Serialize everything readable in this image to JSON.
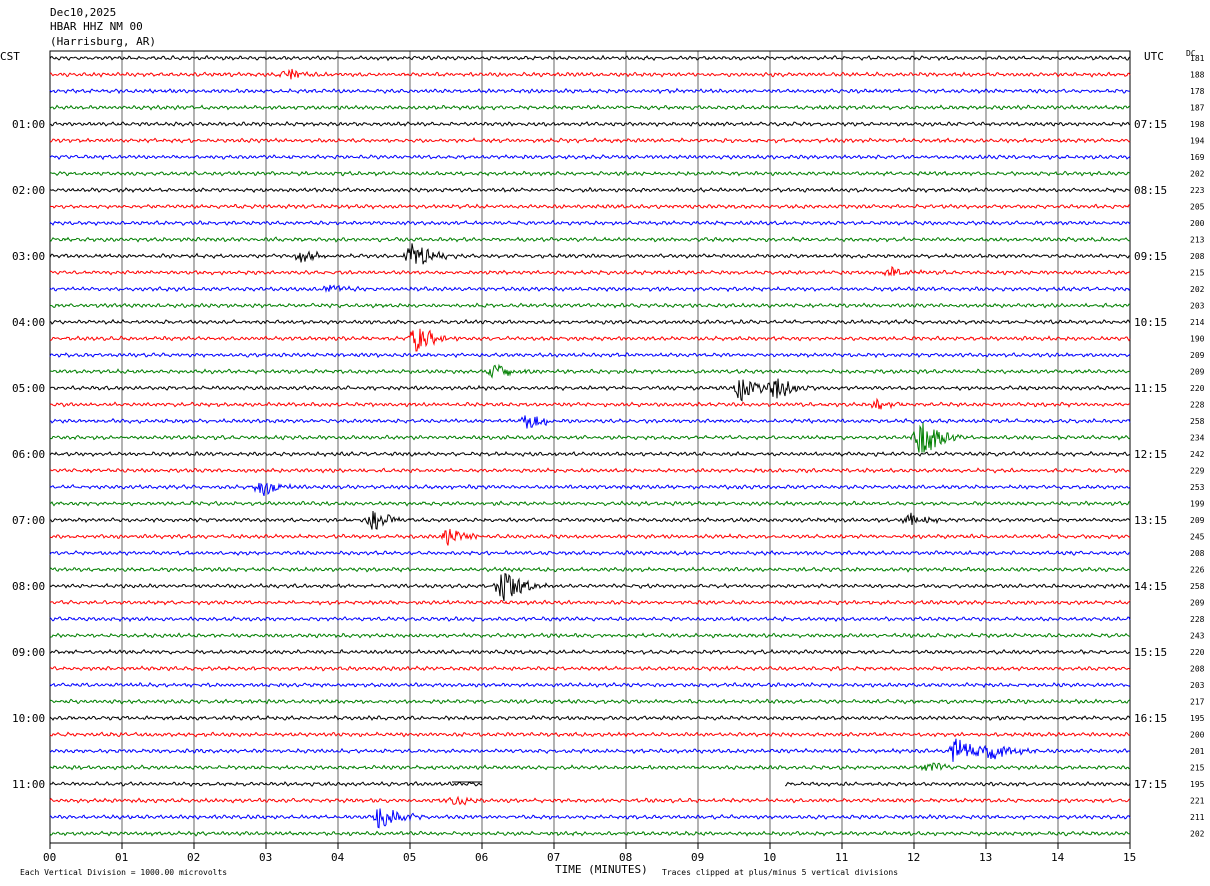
{
  "header": {
    "date": "Dec10,2025",
    "station": "HBAR HHZ NM 00",
    "location": "(Harrisburg, AR)"
  },
  "left_axis_title": "CST",
  "right_axis_title": "UTC",
  "dc_title": "DC",
  "colors": {
    "black": "#000000",
    "red": "#ff0000",
    "blue": "#0000ff",
    "green": "#007f00",
    "grid": "#000000"
  },
  "footer": {
    "scale_note": "Each Vertical Division = 1000.00 microvolts",
    "xlabel": "TIME (MINUTES)",
    "clip_note": "Traces clipped at plus/minus 5 vertical divisions"
  },
  "chart_data": {
    "type": "line",
    "title": "HBAR HHZ NM 00",
    "xlabel": "TIME (MINUTES)",
    "xlim": [
      0,
      15
    ],
    "x_ticks": [
      "00",
      "01",
      "02",
      "03",
      "04",
      "05",
      "06",
      "07",
      "08",
      "09",
      "10",
      "11",
      "12",
      "13",
      "14",
      "15"
    ],
    "hour_labels_cst": [
      "01:00",
      "02:00",
      "03:00",
      "04:00",
      "05:00",
      "06:00",
      "07:00",
      "08:00",
      "09:00",
      "10:00",
      "11:00"
    ],
    "hour_labels_utc": [
      "07:15",
      "08:15",
      "09:15",
      "10:15",
      "11:15",
      "12:15",
      "13:15",
      "14:15",
      "15:15",
      "16:15",
      "17:15"
    ],
    "trace_colors_cycle": [
      "black",
      "red",
      "blue",
      "green"
    ],
    "dc_offsets": [
      181,
      188,
      178,
      187,
      198,
      194,
      169,
      202,
      223,
      205,
      200,
      213,
      208,
      215,
      202,
      203,
      214,
      190,
      209,
      209,
      220,
      228,
      258,
      234,
      242,
      229,
      253,
      199,
      209,
      245,
      208,
      226,
      258,
      209,
      228,
      243,
      220,
      208,
      203,
      217,
      195,
      200,
      201,
      215,
      195,
      221,
      211,
      202
    ],
    "events": [
      {
        "trace": 1,
        "minute": 3.3,
        "amp": 1.0
      },
      {
        "trace": 12,
        "minute": 3.5,
        "amp": 1.0
      },
      {
        "trace": 12,
        "minute": 5.05,
        "amp": 2.5
      },
      {
        "trace": 13,
        "minute": 11.7,
        "amp": 0.8
      },
      {
        "trace": 14,
        "minute": 3.9,
        "amp": 0.6
      },
      {
        "trace": 17,
        "minute": 5.1,
        "amp": 2.2
      },
      {
        "trace": 19,
        "minute": 6.2,
        "amp": 1.3
      },
      {
        "trace": 20,
        "minute": 9.6,
        "amp": 1.8
      },
      {
        "trace": 20,
        "minute": 10.1,
        "amp": 1.8
      },
      {
        "trace": 21,
        "minute": 11.5,
        "amp": 0.7
      },
      {
        "trace": 22,
        "minute": 6.65,
        "amp": 1.4
      },
      {
        "trace": 23,
        "minute": 12.1,
        "amp": 3.5
      },
      {
        "trace": 26,
        "minute": 2.95,
        "amp": 1.4
      },
      {
        "trace": 28,
        "minute": 4.5,
        "amp": 1.5
      },
      {
        "trace": 28,
        "minute": 11.95,
        "amp": 1.0
      },
      {
        "trace": 29,
        "minute": 5.55,
        "amp": 1.5
      },
      {
        "trace": 32,
        "minute": 6.3,
        "amp": 3.5
      },
      {
        "trace": 42,
        "minute": 12.6,
        "amp": 2.3
      },
      {
        "trace": 42,
        "minute": 13.1,
        "amp": 1.8
      },
      {
        "trace": 43,
        "minute": 12.2,
        "amp": 1.0
      },
      {
        "trace": 45,
        "minute": 5.6,
        "amp": 0.8
      },
      {
        "trace": 46,
        "minute": 4.6,
        "amp": 2.6
      }
    ],
    "gap": {
      "trace": 44,
      "start_minute": 6.0,
      "end_minute": 10.2
    }
  }
}
